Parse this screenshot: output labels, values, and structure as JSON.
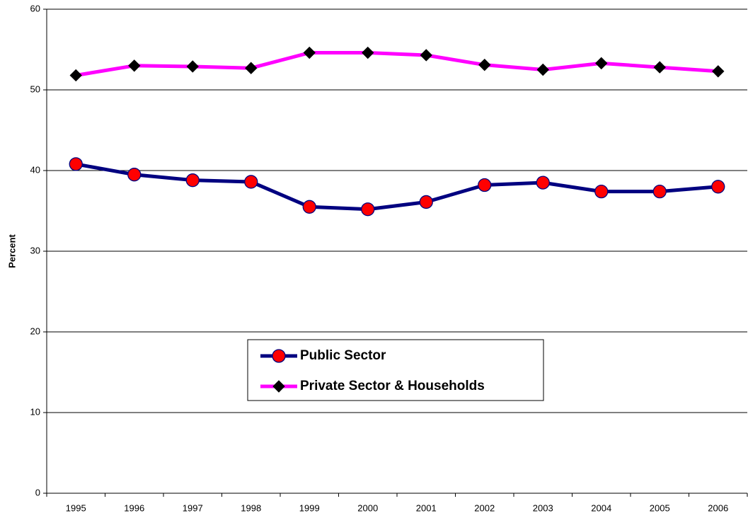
{
  "chart_data": {
    "type": "line",
    "y_label": "Percent",
    "categories": [
      "1995",
      "1996",
      "1997",
      "1998",
      "1999",
      "2000",
      "2001",
      "2002",
      "2003",
      "2004",
      "2005",
      "2006"
    ],
    "series": [
      {
        "name": "Public Sector",
        "color": "#000080",
        "marker": "circle",
        "marker_color": "#ff0000",
        "values": [
          40.8,
          39.5,
          38.8,
          38.6,
          35.5,
          35.2,
          36.1,
          38.2,
          38.5,
          37.4,
          37.4,
          38.0
        ]
      },
      {
        "name": "Private Sector & Households",
        "color": "#ff00ff",
        "marker": "diamond",
        "marker_color": "#000000",
        "values": [
          51.8,
          53.0,
          52.9,
          52.7,
          54.6,
          54.6,
          54.3,
          53.1,
          52.5,
          53.3,
          52.8,
          52.3
        ]
      }
    ],
    "ylim": [
      0,
      60
    ],
    "yticks": [
      0,
      10,
      20,
      30,
      40,
      50,
      60
    ],
    "grid": true
  }
}
